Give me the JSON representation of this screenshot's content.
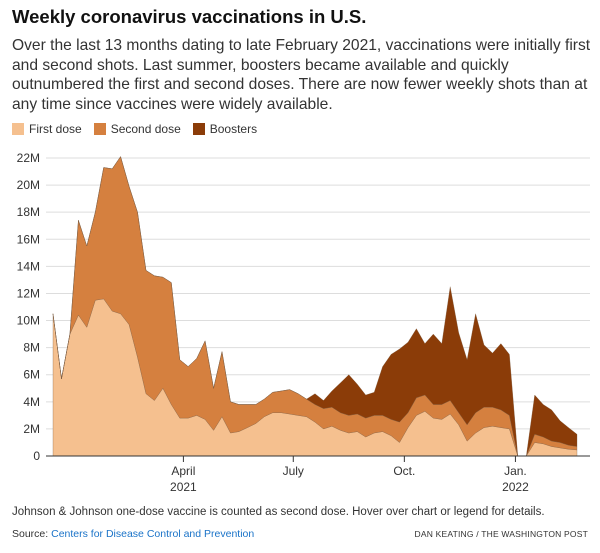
{
  "title": "Weekly coronavirus vaccinations in U.S.",
  "description": "Over the last 13 months dating to late February 2021, vaccinations were initially first and second shots. Last summer, boosters became available and quickly outnumbered the first and second doses. There are now fewer weekly shots than at any time since vaccines were widely available.",
  "note": "Johnson & Johnson one-dose vaccine is counted as second dose. Hover over chart or legend for details.",
  "source": {
    "label": "Source:",
    "link_text": "Centers for Disease Control and Prevention"
  },
  "credit": "DAN KEATING / THE WASHINGTON POST",
  "colors": {
    "first_dose": "#f5c08f",
    "second_dose": "#d5803f",
    "boosters": "#8b3c08",
    "gridline": "#dddddd",
    "axis": "#333333"
  },
  "chart_data": {
    "type": "area",
    "stacked": true,
    "title": "Weekly coronavirus vaccinations in U.S.",
    "xlabel": "",
    "ylabel": "",
    "ylim": [
      0,
      22000000
    ],
    "y_ticks": [
      0,
      2000000,
      4000000,
      6000000,
      8000000,
      10000000,
      12000000,
      14000000,
      16000000,
      18000000,
      20000000,
      22000000
    ],
    "y_tick_labels": [
      "0",
      "2M",
      "4M",
      "6M",
      "8M",
      "10M",
      "12M",
      "14M",
      "16M",
      "18M",
      "20M",
      "22M"
    ],
    "x_ticks": [
      {
        "label": "April",
        "sub": "2021",
        "date": "2021-04-01"
      },
      {
        "label": "July",
        "sub": "",
        "date": "2021-07-01"
      },
      {
        "label": "Oct.",
        "sub": "",
        "date": "2021-10-01"
      },
      {
        "label": "Jan.",
        "sub": "2022",
        "date": "2022-01-01"
      }
    ],
    "legend_position": "top-left",
    "grid": true,
    "x": [
      "2020-12-14",
      "2020-12-21",
      "2020-12-28",
      "2021-01-04",
      "2021-01-11",
      "2021-01-18",
      "2021-01-25",
      "2021-02-01",
      "2021-02-08",
      "2021-02-15",
      "2021-02-22",
      "2021-03-01",
      "2021-03-08",
      "2021-03-15",
      "2021-03-22",
      "2021-03-29",
      "2021-04-05",
      "2021-04-12",
      "2021-04-19",
      "2021-04-26",
      "2021-05-03",
      "2021-05-10",
      "2021-05-17",
      "2021-05-24",
      "2021-05-31",
      "2021-06-07",
      "2021-06-14",
      "2021-06-21",
      "2021-06-28",
      "2021-07-05",
      "2021-07-12",
      "2021-07-19",
      "2021-07-26",
      "2021-08-02",
      "2021-08-09",
      "2021-08-16",
      "2021-08-23",
      "2021-08-30",
      "2021-09-06",
      "2021-09-13",
      "2021-09-20",
      "2021-09-27",
      "2021-10-04",
      "2021-10-11",
      "2021-10-18",
      "2021-10-25",
      "2021-11-01",
      "2021-11-08",
      "2021-11-15",
      "2021-11-22",
      "2021-11-29",
      "2021-12-06",
      "2021-12-13",
      "2021-12-20",
      "2021-12-27",
      "2022-01-03",
      "2022-01-10",
      "2022-01-17",
      "2022-01-24",
      "2022-01-31",
      "2022-02-07",
      "2022-02-14",
      "2022-02-21"
    ],
    "series": [
      {
        "name": "First dose",
        "color": "#f5c08f",
        "values": [
          10500000,
          5700000,
          9000000,
          10400000,
          9500000,
          11500000,
          11600000,
          10700000,
          10500000,
          9700000,
          7300000,
          4600000,
          4100000,
          5000000,
          3800000,
          2800000,
          2800000,
          3000000,
          2700000,
          1900000,
          2900000,
          1700000,
          1800000,
          2100000,
          2400000,
          2900000,
          3200000,
          3200000,
          3100000,
          3000000,
          2900000,
          2500000,
          2000000,
          2200000,
          1900000,
          1700000,
          1800000,
          1400000,
          1700000,
          1800000,
          1500000,
          1000000,
          2100000,
          3000000,
          3300000,
          2800000,
          2700000,
          3100000,
          2300000,
          1100000,
          1700000,
          2100000,
          2200000,
          2100000,
          2000000,
          0,
          0,
          1000000,
          900000,
          700000,
          600000,
          500000,
          450000
        ]
      },
      {
        "name": "Second dose",
        "color": "#d5803f",
        "values": [
          0,
          0,
          0,
          7000000,
          6000000,
          6500000,
          9700000,
          10500000,
          11600000,
          10200000,
          10700000,
          9100000,
          9200000,
          8200000,
          9000000,
          4300000,
          3800000,
          4200000,
          5800000,
          3100000,
          4800000,
          2300000,
          2000000,
          1700000,
          1400000,
          1300000,
          1500000,
          1600000,
          1800000,
          1600000,
          1300000,
          1300000,
          1500000,
          1400000,
          1300000,
          1300000,
          1300000,
          1400000,
          1300000,
          1200000,
          1200000,
          1500000,
          1100000,
          1300000,
          1200000,
          1000000,
          1100000,
          1000000,
          900000,
          1200000,
          1500000,
          1500000,
          1400000,
          1300000,
          1000000,
          0,
          0,
          600000,
          500000,
          400000,
          400000,
          300000,
          250000
        ]
      },
      {
        "name": "Boosters",
        "color": "#8b3c08",
        "values": [
          0,
          0,
          0,
          0,
          0,
          0,
          0,
          0,
          0,
          0,
          0,
          0,
          0,
          0,
          0,
          0,
          0,
          0,
          0,
          0,
          0,
          0,
          0,
          0,
          0,
          0,
          0,
          0,
          0,
          0,
          0,
          800000,
          600000,
          1200000,
          2200000,
          3000000,
          2200000,
          1700000,
          1700000,
          3600000,
          4800000,
          5400000,
          5200000,
          5100000,
          3800000,
          5200000,
          4500000,
          8400000,
          5900000,
          4800000,
          7300000,
          4600000,
          4000000,
          4900000,
          4500000,
          0,
          0,
          2900000,
          2400000,
          2300000,
          1600000,
          1300000,
          900000
        ]
      }
    ]
  }
}
